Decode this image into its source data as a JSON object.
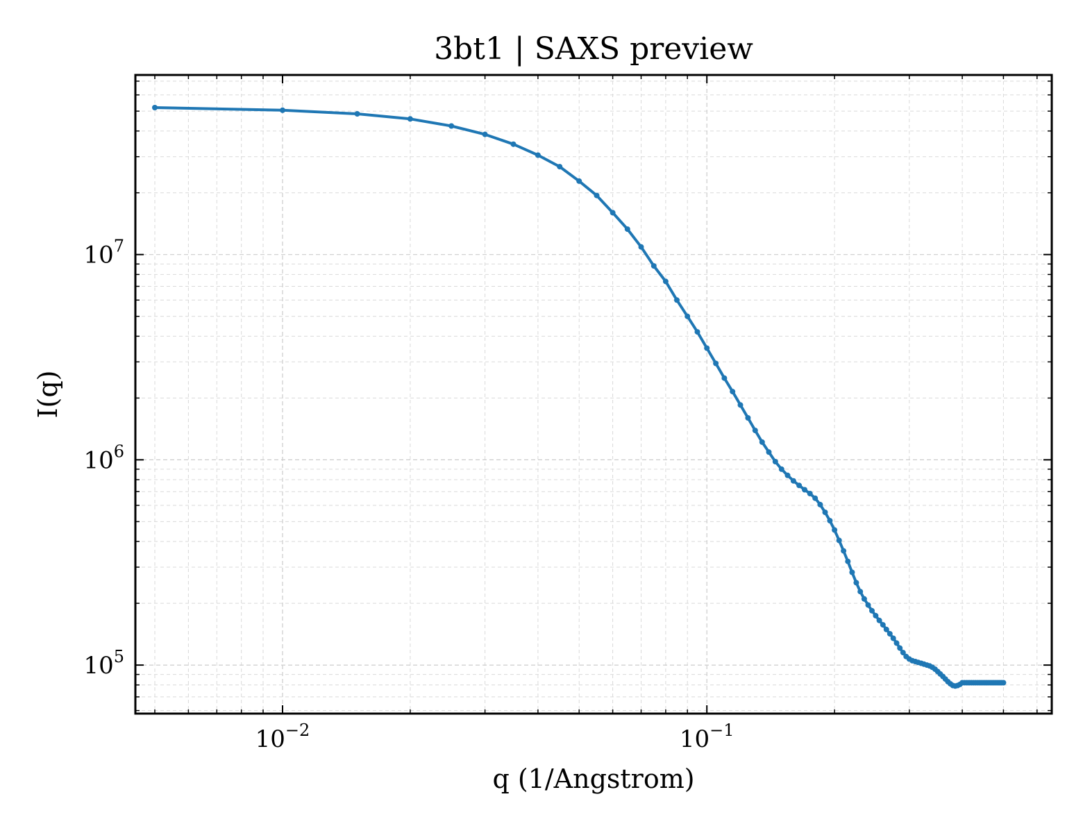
{
  "chart_data": {
    "type": "line",
    "title": "3bt1 | SAXS preview",
    "xlabel": "q (1/Angstrom)",
    "ylabel": "I(q)",
    "xscale": "log",
    "yscale": "log",
    "xlim": [
      0.0045,
      0.65
    ],
    "ylim": [
      58000,
      75000000
    ],
    "grid": true,
    "legend": "none",
    "x_ticks": [
      {
        "value": 0.01,
        "base": "10",
        "exp": "−2"
      },
      {
        "value": 0.1,
        "base": "10",
        "exp": "−1"
      }
    ],
    "y_ticks": [
      {
        "value": 100000,
        "base": "10",
        "exp": "5"
      },
      {
        "value": 1000000,
        "base": "10",
        "exp": "6"
      },
      {
        "value": 10000000,
        "base": "10",
        "exp": "7"
      }
    ],
    "series": [
      {
        "color": "#1f77b4",
        "x": [
          0.005,
          0.01,
          0.015,
          0.02,
          0.025,
          0.03,
          0.035,
          0.04,
          0.045,
          0.05,
          0.055,
          0.06,
          0.065,
          0.07,
          0.075,
          0.08,
          0.085,
          0.09,
          0.095,
          0.1,
          0.105,
          0.11,
          0.115,
          0.12,
          0.125,
          0.13,
          0.135,
          0.14,
          0.145,
          0.15,
          0.155,
          0.16,
          0.165,
          0.17,
          0.175,
          0.18,
          0.185,
          0.19,
          0.195,
          0.2,
          0.205,
          0.21,
          0.215,
          0.22,
          0.225,
          0.23,
          0.235,
          0.24,
          0.245,
          0.25,
          0.255,
          0.26,
          0.265,
          0.27,
          0.275,
          0.28,
          0.285,
          0.29,
          0.295,
          0.3,
          0.305,
          0.31,
          0.315,
          0.32,
          0.325,
          0.33,
          0.335,
          0.34,
          0.345,
          0.35,
          0.355,
          0.36,
          0.365,
          0.37,
          0.375,
          0.38,
          0.385,
          0.39,
          0.395,
          0.4,
          0.405,
          0.41,
          0.415,
          0.42,
          0.425,
          0.43,
          0.435,
          0.44,
          0.445,
          0.45,
          0.455,
          0.46,
          0.465,
          0.47,
          0.475,
          0.48,
          0.485,
          0.49,
          0.495,
          0.5
        ],
        "y": [
          52000000,
          50500000,
          48500000,
          45800000,
          42300000,
          38500000,
          34500000,
          30500000,
          26800000,
          22800000,
          19400000,
          16000000,
          13300000,
          10900000,
          8800000,
          7400000,
          6000000,
          5000000,
          4200000,
          3500000,
          2950000,
          2500000,
          2150000,
          1850000,
          1600000,
          1390000,
          1220000,
          1090000,
          980000,
          900000,
          840000,
          790000,
          750000,
          715000,
          685000,
          650000,
          605000,
          555000,
          505000,
          455000,
          405000,
          360000,
          320000,
          283000,
          252000,
          228000,
          210000,
          196000,
          184000,
          174000,
          165000,
          157000,
          149000,
          142000,
          135000,
          128000,
          121000,
          115000,
          110000,
          107000,
          105000,
          104000,
          103000,
          102000,
          101000,
          100000,
          99000,
          97500,
          95500,
          93000,
          90500,
          88000,
          85500,
          83000,
          81000,
          79500,
          79000,
          79500,
          80500,
          82000,
          82000,
          82000,
          82000,
          82000,
          82000,
          82000,
          82000,
          82000,
          82000,
          82000,
          82000,
          82000,
          82000,
          82000,
          82000,
          82000,
          82000,
          82000,
          82000,
          82000
        ]
      }
    ]
  }
}
